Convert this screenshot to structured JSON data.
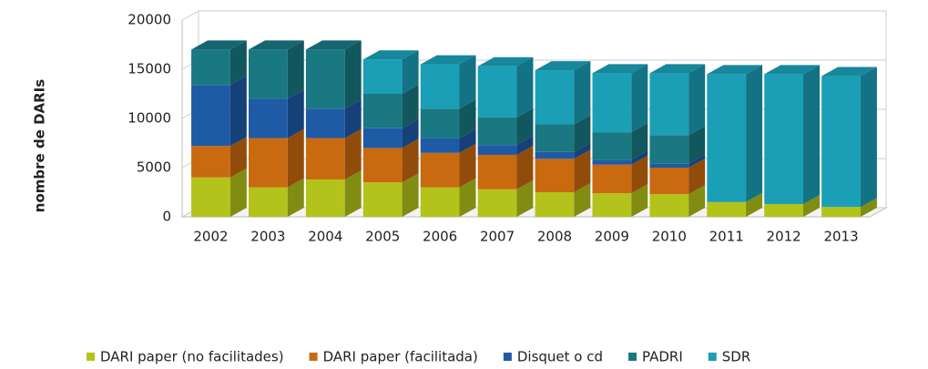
{
  "chart_data": {
    "type": "bar3d-stacked",
    "y_label": "nombre de DARIs",
    "categories": [
      "2002",
      "2003",
      "2004",
      "2005",
      "2006",
      "2007",
      "2008",
      "2009",
      "2010",
      "2011",
      "2012",
      "2013"
    ],
    "series": [
      {
        "name": "DARI paper (no facilitades)",
        "color": "#b3c31b",
        "values": [
          4000,
          3000,
          3800,
          3500,
          3000,
          2800,
          2500,
          2400,
          2300,
          1500,
          1300,
          1000
        ]
      },
      {
        "name": "DARI paper (facilitada)",
        "color": "#c96a10",
        "values": [
          3200,
          5000,
          4200,
          3500,
          3500,
          3500,
          3400,
          2900,
          2700,
          0,
          0,
          0
        ]
      },
      {
        "name": "Disquet o cd",
        "color": "#1f5aa6",
        "values": [
          6200,
          4000,
          3000,
          2000,
          1500,
          1000,
          700,
          500,
          400,
          0,
          0,
          0
        ]
      },
      {
        "name": "PADRI",
        "color": "#197882",
        "values": [
          3600,
          5000,
          6000,
          3500,
          3000,
          2800,
          2800,
          2800,
          2900,
          0,
          0,
          0
        ]
      },
      {
        "name": "SDR",
        "color": "#1b9fb6",
        "values": [
          0,
          0,
          0,
          3500,
          4500,
          5200,
          5500,
          6000,
          6300,
          13000,
          13200,
          13300
        ]
      }
    ],
    "ylim": [
      0,
      20000
    ],
    "yticks": [
      0,
      5000,
      10000,
      15000,
      20000
    ],
    "grid": true,
    "legend": "bottom"
  }
}
